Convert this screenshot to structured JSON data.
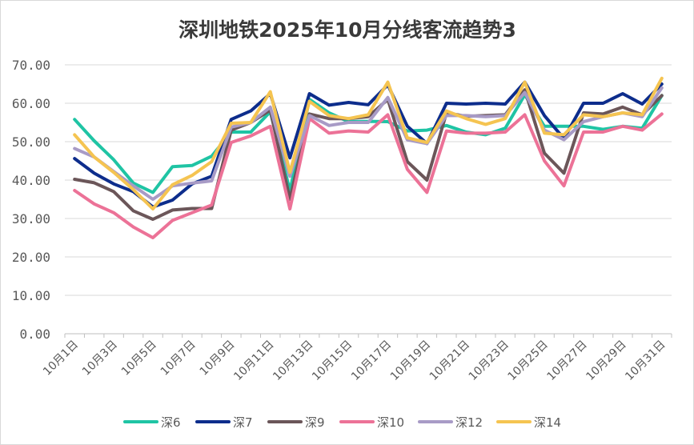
{
  "chart_data": {
    "type": "line",
    "title": "深圳地铁2025年10月分线客流趋势3",
    "xlabel": "",
    "ylabel": "",
    "ylim": [
      0,
      70
    ],
    "yticks": [
      "0.00",
      "10.00",
      "20.00",
      "30.00",
      "40.00",
      "50.00",
      "60.00",
      "70.00"
    ],
    "grid": true,
    "legend_position": "bottom",
    "x": [
      "10月1日",
      "10月2日",
      "10月3日",
      "10月4日",
      "10月5日",
      "10月6日",
      "10月7日",
      "10月8日",
      "10月9日",
      "10月10日",
      "10月11日",
      "10月12日",
      "10月13日",
      "10月14日",
      "10月15日",
      "10月16日",
      "10月17日",
      "10月18日",
      "10月19日",
      "10月20日",
      "10月21日",
      "10月22日",
      "10月23日",
      "10月24日",
      "10月25日",
      "10月26日",
      "10月27日",
      "10月28日",
      "10月29日",
      "10月30日",
      "10月31日"
    ],
    "xtick_labels": [
      "10月1日",
      "",
      "10月3日",
      "",
      "10月5日",
      "",
      "10月7日",
      "",
      "10月9日",
      "",
      "10月11日",
      "",
      "10月13日",
      "",
      "10月15日",
      "",
      "10月17日",
      "",
      "10月19日",
      "",
      "10月21日",
      "",
      "10月23日",
      "",
      "10月25日",
      "",
      "10月27日",
      "",
      "10月29日",
      "",
      "10月31日"
    ],
    "series": [
      {
        "name": "深6",
        "color": "#1fc4a4",
        "values": [
          55.8,
          50.2,
          45.3,
          39.2,
          36.8,
          43.5,
          43.8,
          46.2,
          52.5,
          52.5,
          57.8,
          37.2,
          61.0,
          57.5,
          55.2,
          55.3,
          55.2,
          52.8,
          53.0,
          54.2,
          52.5,
          51.8,
          53.5,
          62.2,
          54.0,
          54.0,
          54.0,
          53.2,
          54.0,
          53.5,
          62.0
        ]
      },
      {
        "name": "深7",
        "color": "#0d2d8c",
        "values": [
          45.6,
          41.8,
          39.0,
          37.0,
          33.0,
          34.8,
          39.0,
          41.0,
          55.8,
          58.0,
          62.5,
          45.8,
          62.5,
          59.5,
          60.2,
          59.6,
          64.8,
          54.0,
          49.5,
          60.0,
          59.8,
          60.0,
          59.8,
          65.5,
          56.8,
          50.8,
          60.0,
          60.0,
          62.5,
          59.8,
          65.0
        ]
      },
      {
        "name": "深9",
        "color": "#6b5659",
        "values": [
          40.2,
          39.3,
          37.0,
          32.0,
          29.8,
          32.2,
          32.6,
          32.6,
          53.0,
          55.0,
          58.2,
          35.0,
          57.2,
          56.0,
          56.0,
          56.5,
          61.0,
          44.8,
          40.0,
          57.5,
          56.6,
          56.8,
          57.0,
          63.5,
          47.0,
          41.8,
          57.5,
          57.2,
          59.0,
          57.0,
          62.0
        ]
      },
      {
        "name": "深10",
        "color": "#ec7297",
        "values": [
          37.3,
          33.8,
          31.5,
          27.8,
          25.0,
          29.5,
          31.5,
          33.5,
          49.8,
          51.5,
          54.0,
          32.5,
          56.0,
          52.2,
          52.8,
          52.5,
          57.0,
          42.8,
          36.8,
          52.8,
          52.2,
          52.2,
          52.5,
          57.0,
          45.0,
          38.5,
          52.5,
          52.5,
          54.0,
          53.0,
          57.2
        ]
      },
      {
        "name": "深12",
        "color": "#a89bc6",
        "values": [
          48.2,
          46.0,
          42.2,
          38.5,
          35.0,
          38.5,
          39.2,
          39.8,
          53.8,
          55.0,
          59.0,
          41.0,
          56.8,
          54.2,
          55.0,
          55.0,
          61.5,
          50.5,
          49.5,
          56.8,
          56.8,
          56.5,
          56.8,
          62.8,
          53.0,
          50.5,
          55.2,
          56.5,
          57.5,
          56.5,
          64.0
        ]
      },
      {
        "name": "深14",
        "color": "#f5c451",
        "values": [
          51.8,
          46.0,
          42.0,
          37.5,
          32.5,
          38.8,
          41.2,
          44.8,
          54.8,
          55.0,
          63.0,
          42.0,
          60.5,
          56.8,
          56.0,
          57.0,
          65.5,
          51.0,
          49.8,
          58.0,
          56.0,
          54.5,
          56.0,
          65.5,
          52.2,
          51.8,
          57.0,
          56.5,
          57.5,
          57.0,
          66.5
        ]
      }
    ]
  }
}
